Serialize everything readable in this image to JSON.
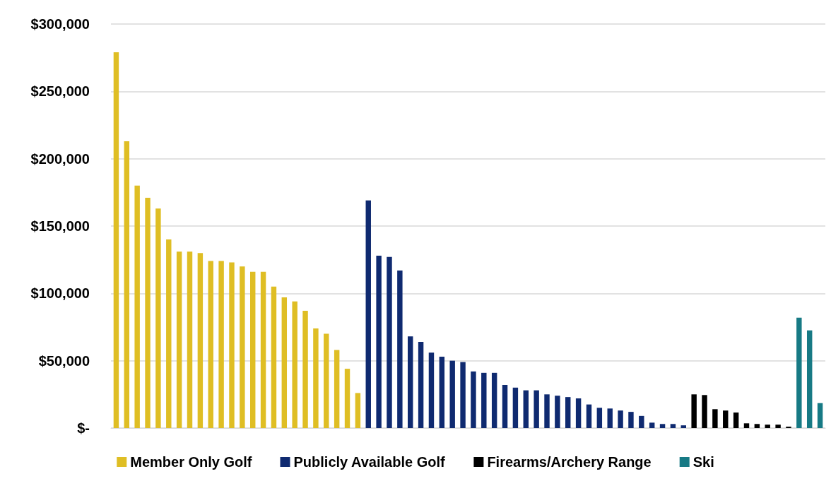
{
  "chart_data": {
    "type": "bar",
    "categories": [
      null,
      null,
      null,
      null,
      null,
      null,
      null,
      null,
      null,
      null,
      null,
      null,
      null,
      null,
      null,
      null,
      null,
      null,
      null,
      null,
      null,
      null,
      null,
      null,
      null,
      null,
      null,
      null,
      null,
      null,
      null,
      null,
      null,
      null,
      null,
      null,
      null,
      null,
      null,
      null,
      null,
      null,
      null,
      null,
      null,
      null,
      null,
      null,
      null,
      null,
      null,
      null,
      null,
      null,
      null,
      null,
      null,
      null,
      null,
      null,
      null,
      null,
      null,
      null,
      null,
      null,
      null,
      null
    ],
    "series": [
      {
        "name": "Member Only Golf",
        "color": "#dfbe24",
        "values": [
          279000,
          213000,
          180000,
          171000,
          163000,
          140000,
          131000,
          131000,
          130000,
          124000,
          124000,
          123000,
          120000,
          116000,
          116000,
          105000,
          97000,
          94000,
          87000,
          74000,
          70000,
          58000,
          44000,
          26000,
          null,
          null,
          null,
          null,
          null,
          null,
          null,
          null,
          null,
          null,
          null,
          null,
          null,
          null,
          null,
          null,
          null,
          null,
          null,
          null,
          null,
          null,
          null,
          null,
          null,
          null,
          null,
          null,
          null,
          null,
          null,
          null,
          null,
          null,
          null,
          null,
          null,
          null,
          null,
          null,
          null,
          null,
          null,
          null
        ]
      },
      {
        "name": "Publicly Available Golf",
        "color": "#0f2a70",
        "values": [
          null,
          null,
          null,
          null,
          null,
          null,
          null,
          null,
          null,
          null,
          null,
          null,
          null,
          null,
          null,
          null,
          null,
          null,
          null,
          null,
          null,
          null,
          null,
          null,
          169000,
          128000,
          127000,
          117000,
          68000,
          64000,
          56000,
          53000,
          50000,
          49000,
          42000,
          41000,
          41000,
          32000,
          30000,
          28000,
          28000,
          25000,
          24000,
          23000,
          22000,
          17500,
          15000,
          14500,
          13000,
          12000,
          9000,
          4000,
          3000,
          3000,
          2000,
          null,
          null,
          null,
          null,
          null,
          null,
          null,
          null,
          null,
          null,
          null,
          null,
          null
        ]
      },
      {
        "name": "Firearms/Archery Range",
        "color": "#000000",
        "values": [
          null,
          null,
          null,
          null,
          null,
          null,
          null,
          null,
          null,
          null,
          null,
          null,
          null,
          null,
          null,
          null,
          null,
          null,
          null,
          null,
          null,
          null,
          null,
          null,
          null,
          null,
          null,
          null,
          null,
          null,
          null,
          null,
          null,
          null,
          null,
          null,
          null,
          null,
          null,
          null,
          null,
          null,
          null,
          null,
          null,
          null,
          null,
          null,
          null,
          null,
          null,
          null,
          null,
          null,
          null,
          25000,
          24500,
          14000,
          13000,
          11500,
          3500,
          3000,
          2500,
          2500,
          1000,
          null,
          null,
          null
        ]
      },
      {
        "name": "Ski",
        "color": "#177a85",
        "values": [
          null,
          null,
          null,
          null,
          null,
          null,
          null,
          null,
          null,
          null,
          null,
          null,
          null,
          null,
          null,
          null,
          null,
          null,
          null,
          null,
          null,
          null,
          null,
          null,
          null,
          null,
          null,
          null,
          null,
          null,
          null,
          null,
          null,
          null,
          null,
          null,
          null,
          null,
          null,
          null,
          null,
          null,
          null,
          null,
          null,
          null,
          null,
          null,
          null,
          null,
          null,
          null,
          null,
          null,
          null,
          null,
          null,
          null,
          null,
          null,
          null,
          null,
          null,
          null,
          null,
          82000,
          72500,
          18500
        ]
      }
    ],
    "ylim": [
      0,
      300000
    ],
    "yticks": [
      {
        "value": 0,
        "label": "$-"
      },
      {
        "value": 50000,
        "label": "$50,000"
      },
      {
        "value": 100000,
        "label": "$100,000"
      },
      {
        "value": 150000,
        "label": "$150,000"
      },
      {
        "value": 200000,
        "label": "$200,000"
      },
      {
        "value": 250000,
        "label": "$250,000"
      },
      {
        "value": 300000,
        "label": "$300,000"
      }
    ],
    "grid": "y",
    "legend": "bottom"
  }
}
